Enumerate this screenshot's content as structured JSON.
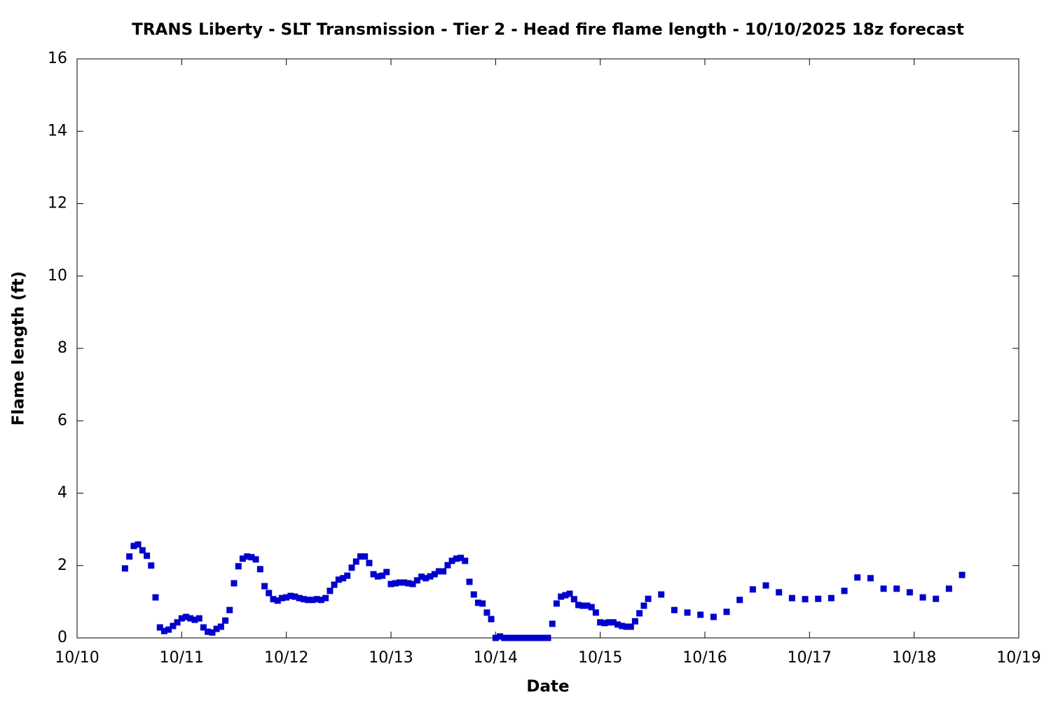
{
  "chart_data": {
    "type": "scatter",
    "title": "TRANS Liberty - SLT Transmission - Tier 2 - Head fire flame length - 10/10/2025 18z forecast",
    "x_label": "Date",
    "y_label": "Flame length (ft)",
    "xlim": [
      0,
      9
    ],
    "xticks": [
      {
        "value": 0,
        "label": "10/10"
      },
      {
        "value": 1,
        "label": "10/11"
      },
      {
        "value": 2,
        "label": "10/12"
      },
      {
        "value": 3,
        "label": "10/13"
      },
      {
        "value": 4,
        "label": "10/14"
      },
      {
        "value": 5,
        "label": "10/15"
      },
      {
        "value": 6,
        "label": "10/16"
      },
      {
        "value": 7,
        "label": "10/17"
      },
      {
        "value": 8,
        "label": "10/18"
      },
      {
        "value": 9,
        "label": "10/19"
      }
    ],
    "ylim": [
      0,
      16
    ],
    "yticks": [
      0,
      2,
      4,
      6,
      8,
      10,
      12,
      14,
      16
    ],
    "color": "#0000cc",
    "x": [
      0.458,
      0.5,
      0.542,
      0.583,
      0.625,
      0.667,
      0.708,
      0.75,
      0.792,
      0.833,
      0.875,
      0.917,
      0.958,
      1,
      1.042,
      1.083,
      1.125,
      1.167,
      1.208,
      1.25,
      1.292,
      1.333,
      1.375,
      1.417,
      1.458,
      1.5,
      1.542,
      1.583,
      1.625,
      1.667,
      1.708,
      1.75,
      1.792,
      1.833,
      1.875,
      1.917,
      1.958,
      2,
      2.042,
      2.083,
      2.125,
      2.167,
      2.208,
      2.25,
      2.292,
      2.333,
      2.375,
      2.417,
      2.458,
      2.5,
      2.542,
      2.583,
      2.625,
      2.667,
      2.708,
      2.75,
      2.792,
      2.833,
      2.875,
      2.917,
      2.958,
      3,
      3.042,
      3.083,
      3.125,
      3.167,
      3.208,
      3.25,
      3.292,
      3.333,
      3.375,
      3.417,
      3.458,
      3.5,
      3.542,
      3.583,
      3.625,
      3.667,
      3.708,
      3.75,
      3.792,
      3.833,
      3.875,
      3.917,
      3.958,
      4,
      4.042,
      4.083,
      4.125,
      4.167,
      4.208,
      4.25,
      4.292,
      4.333,
      4.375,
      4.417,
      4.458,
      4.5,
      4.542,
      4.583,
      4.625,
      4.667,
      4.708,
      4.75,
      4.792,
      4.833,
      4.875,
      4.917,
      4.958,
      5,
      5.042,
      5.083,
      5.125,
      5.167,
      5.208,
      5.25,
      5.292,
      5.333,
      5.375,
      5.417,
      5.458,
      5.583,
      5.708,
      5.833,
      5.958,
      6.083,
      6.208,
      6.333,
      6.458,
      6.583,
      6.708,
      6.833,
      6.958,
      7.083,
      7.208,
      7.333,
      7.458,
      7.583,
      7.708,
      7.833,
      7.958,
      8.083,
      8.208,
      8.333,
      8.458
    ],
    "values": [
      1.92,
      2.25,
      2.54,
      2.58,
      2.42,
      2.27,
      2.0,
      1.12,
      0.29,
      0.19,
      0.23,
      0.33,
      0.43,
      0.54,
      0.58,
      0.54,
      0.5,
      0.54,
      0.29,
      0.17,
      0.15,
      0.25,
      0.31,
      0.48,
      0.77,
      1.51,
      1.98,
      2.19,
      2.25,
      2.23,
      2.17,
      1.9,
      1.43,
      1.24,
      1.07,
      1.03,
      1.1,
      1.12,
      1.16,
      1.14,
      1.1,
      1.07,
      1.05,
      1.05,
      1.07,
      1.05,
      1.1,
      1.3,
      1.47,
      1.61,
      1.65,
      1.72,
      1.94,
      2.11,
      2.25,
      2.25,
      2.07,
      1.76,
      1.7,
      1.72,
      1.82,
      1.49,
      1.51,
      1.53,
      1.53,
      1.51,
      1.49,
      1.59,
      1.69,
      1.65,
      1.7,
      1.76,
      1.84,
      1.84,
      2.01,
      2.13,
      2.19,
      2.21,
      2.13,
      1.55,
      1.2,
      0.97,
      0.95,
      0.7,
      0.52,
      0,
      0.04,
      0,
      0,
      0,
      0,
      0,
      0,
      0,
      0,
      0,
      0,
      0,
      0.39,
      0.95,
      1.14,
      1.18,
      1.22,
      1.07,
      0.91,
      0.89,
      0.89,
      0.85,
      0.7,
      0.43,
      0.41,
      0.43,
      0.43,
      0.37,
      0.33,
      0.31,
      0.31,
      0.46,
      0.68,
      0.89,
      1.08,
      1.2,
      0.77,
      0.7,
      0.64,
      0.58,
      0.72,
      1.05,
      1.34,
      1.45,
      1.26,
      1.1,
      1.07,
      1.08,
      1.1,
      1.3,
      1.67,
      1.65,
      1.36,
      1.36,
      1.26,
      1.12,
      1.08,
      1.36,
      1.74
    ]
  }
}
